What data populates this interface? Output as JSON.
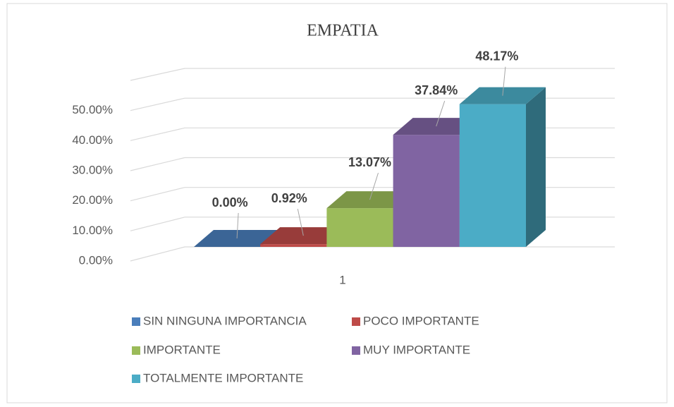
{
  "chart_data": {
    "type": "bar3d",
    "title": "EMPATIA",
    "categories": [
      "1"
    ],
    "series": [
      {
        "name": "SIN NINGUNA IMPORTANCIA",
        "color": "#4a7ebb",
        "values": [
          0
        ],
        "value_labels": [
          "0.00%"
        ]
      },
      {
        "name": "POCO IMPORTANTE",
        "color": "#be4b48",
        "values": [
          0.92
        ],
        "value_labels": [
          "0.92%"
        ]
      },
      {
        "name": "IMPORTANTE",
        "color": "#9bbb59",
        "values": [
          13.07
        ],
        "value_labels": [
          "13.07%"
        ]
      },
      {
        "name": "MUY IMPORTANTE",
        "color": "#8064a2",
        "values": [
          37.84
        ],
        "value_labels": [
          "37.84%"
        ]
      },
      {
        "name": "TOTALMENTE IMPORTANTE",
        "color": "#4bacc6",
        "values": [
          48.17
        ],
        "value_labels": [
          "48.17%"
        ]
      }
    ],
    "ylim": [
      0,
      60
    ],
    "yticks": [
      {
        "value": 0,
        "label": "0.00%"
      },
      {
        "value": 10,
        "label": "10.00%"
      },
      {
        "value": 20,
        "label": "20.00%"
      },
      {
        "value": 30,
        "label": "30.00%"
      },
      {
        "value": 40,
        "label": "40.00%"
      },
      {
        "value": 50,
        "label": "50.00%"
      }
    ],
    "grid": true
  }
}
